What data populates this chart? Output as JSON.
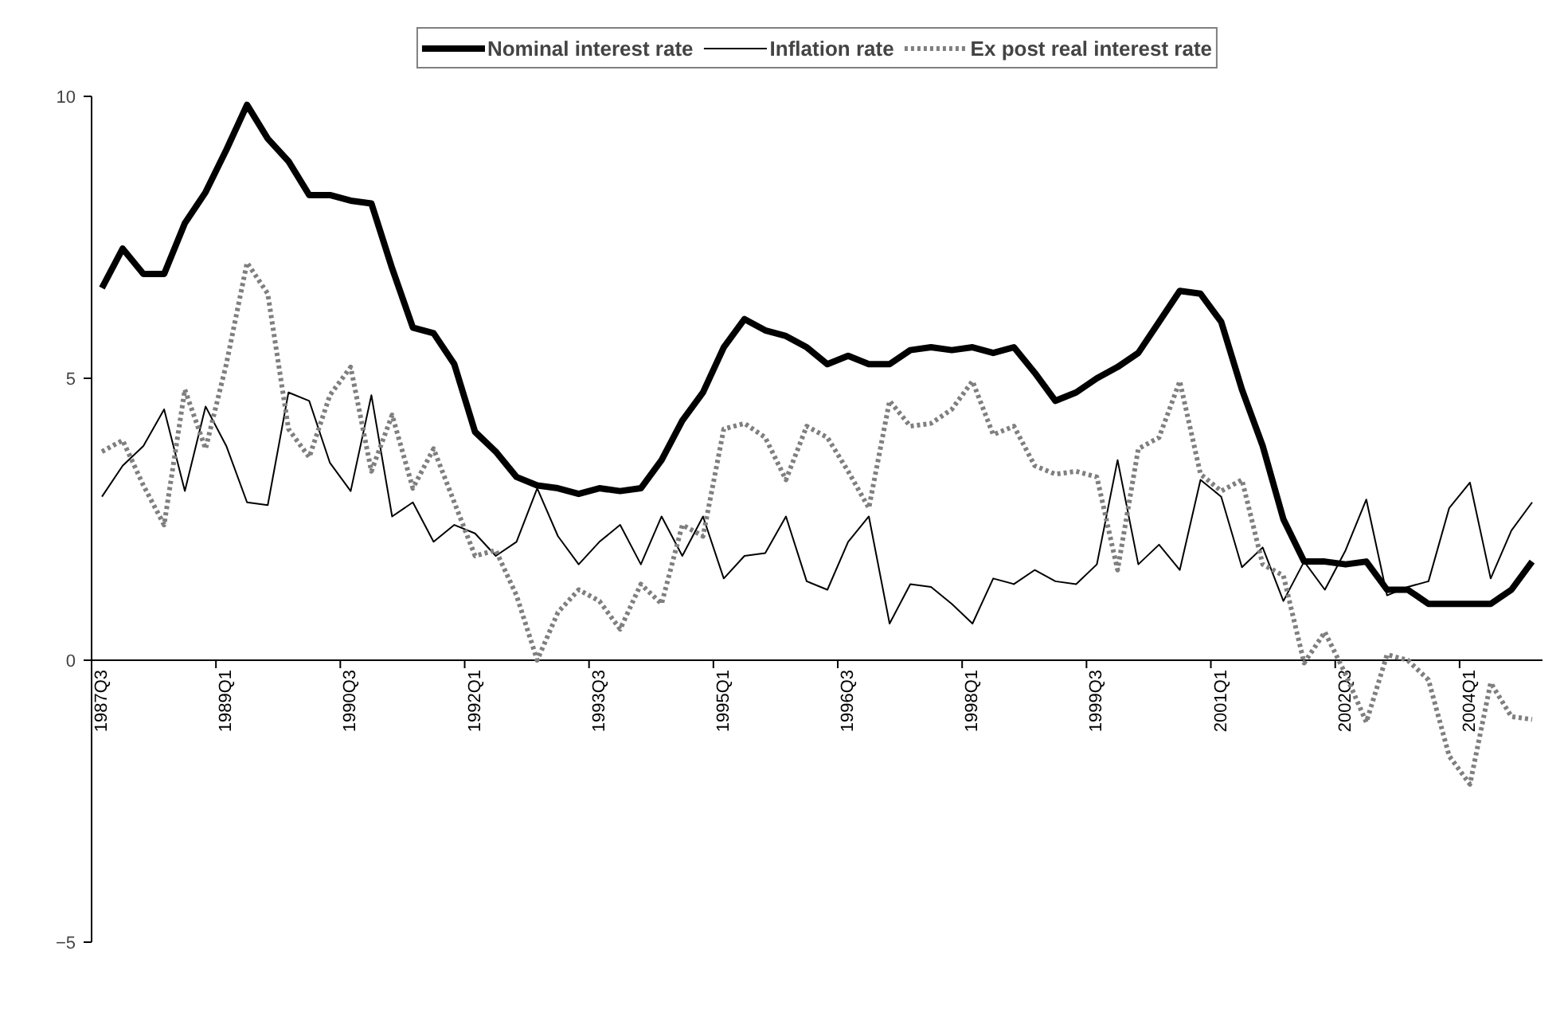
{
  "chart_data": {
    "type": "line",
    "categories": [
      "1987Q3",
      null,
      null,
      null,
      null,
      null,
      "1989Q1",
      null,
      null,
      null,
      null,
      null,
      "1990Q3",
      null,
      null,
      null,
      null,
      null,
      "1992Q1",
      null,
      null,
      null,
      null,
      null,
      "1993Q3",
      null,
      null,
      null,
      null,
      null,
      "1995Q1",
      null,
      null,
      null,
      null,
      null,
      "1996Q3",
      null,
      null,
      null,
      null,
      null,
      "1998Q1",
      null,
      null,
      null,
      null,
      null,
      "1999Q3",
      null,
      null,
      null,
      null,
      null,
      "2001Q1",
      null,
      null,
      null,
      null,
      null,
      "2002Q3",
      null,
      null,
      null,
      null,
      null,
      "2004Q1",
      null,
      null,
      null
    ],
    "series": [
      {
        "name": "Nominal interest rate",
        "color": "#000000",
        "line_style": "solid",
        "values": [
          6.6,
          7.3,
          6.85,
          6.85,
          7.75,
          8.3,
          9.05,
          9.85,
          9.25,
          8.85,
          8.25,
          8.25,
          8.15,
          8.1,
          6.95,
          5.9,
          5.8,
          5.25,
          4.05,
          3.7,
          3.25,
          3.1,
          3.05,
          2.95,
          3.05,
          3.0,
          3.05,
          3.55,
          4.25,
          4.75,
          5.55,
          6.05,
          5.85,
          5.75,
          5.55,
          5.25,
          5.4,
          5.25,
          5.25,
          5.5,
          5.55,
          5.5,
          5.55,
          5.45,
          5.55,
          5.1,
          4.6,
          4.75,
          5.0,
          5.2,
          5.45,
          6.0,
          6.55,
          6.5,
          6.0,
          4.8,
          3.8,
          2.5,
          1.75,
          1.75,
          1.7,
          1.75,
          1.25,
          1.25,
          1.0,
          1.0,
          1.0,
          1.0,
          1.25,
          1.75
        ]
      },
      {
        "name": "Inflation rate",
        "color": "#000000",
        "line_style": "solid",
        "values": [
          2.9,
          3.45,
          3.8,
          4.45,
          3.0,
          4.5,
          3.8,
          2.8,
          2.75,
          4.75,
          4.6,
          3.5,
          3.0,
          4.7,
          2.55,
          2.8,
          2.1,
          2.4,
          2.25,
          1.85,
          2.1,
          3.05,
          2.2,
          1.7,
          2.1,
          2.4,
          1.7,
          2.55,
          1.85,
          2.55,
          1.45,
          1.85,
          1.9,
          2.55,
          1.4,
          1.25,
          2.1,
          2.55,
          0.65,
          1.35,
          1.3,
          1.0,
          0.65,
          1.45,
          1.35,
          1.6,
          1.4,
          1.35,
          1.7,
          3.55,
          1.7,
          2.05,
          1.6,
          3.2,
          2.9,
          1.65,
          2.0,
          1.05,
          1.75,
          1.25,
          1.95,
          2.85,
          1.15,
          1.3,
          1.4,
          2.7,
          3.15,
          1.45,
          2.3,
          2.8
        ]
      },
      {
        "name": "Ex post real interest rate",
        "color": "#7f7f7f",
        "line_style": "dotted",
        "values": [
          3.7,
          3.9,
          3.1,
          2.4,
          4.8,
          3.75,
          5.25,
          7.05,
          6.5,
          4.1,
          3.6,
          4.7,
          5.2,
          3.35,
          4.35,
          3.05,
          3.75,
          2.8,
          1.85,
          1.95,
          1.15,
          0.0,
          0.85,
          1.25,
          1.05,
          0.55,
          1.35,
          1.0,
          2.4,
          2.2,
          4.1,
          4.2,
          3.95,
          3.2,
          4.15,
          3.95,
          3.35,
          2.7,
          4.6,
          4.15,
          4.2,
          4.45,
          4.95,
          4.0,
          4.15,
          3.45,
          3.3,
          3.35,
          3.25,
          1.6,
          3.75,
          3.95,
          4.95,
          3.3,
          3.0,
          3.2,
          1.7,
          1.5,
          -0.05,
          0.5,
          -0.25,
          -1.1,
          0.1,
          0.0,
          -0.35,
          -1.7,
          -2.2,
          -0.4,
          -1.0,
          -1.05
        ]
      }
    ],
    "ylim": [
      -5,
      10
    ],
    "yticks": [
      -5,
      0,
      5,
      10
    ],
    "legend": "top",
    "grid": false
  }
}
